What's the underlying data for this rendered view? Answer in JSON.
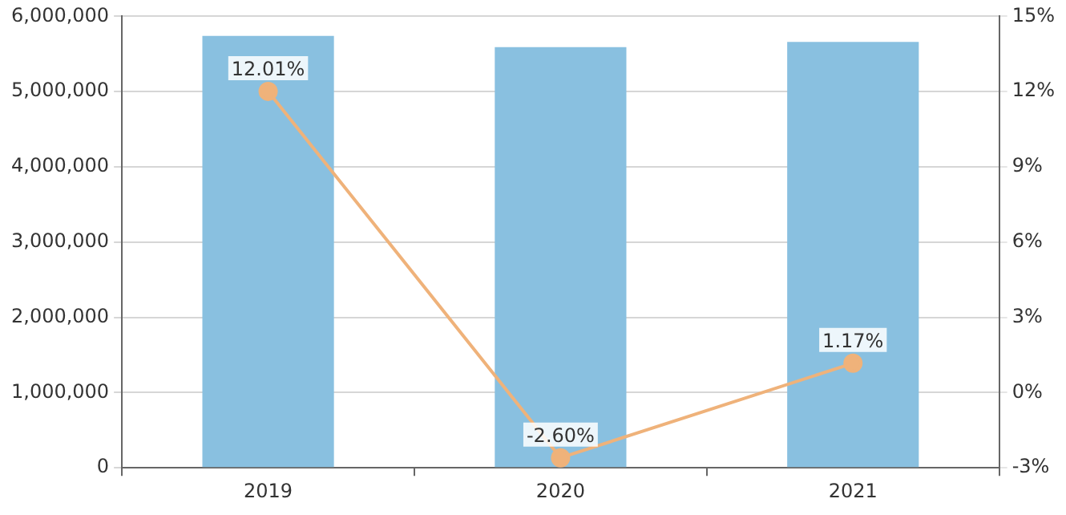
{
  "chart_data": {
    "type": "bar",
    "categories": [
      "2019",
      "2020",
      "2021"
    ],
    "series": [
      {
        "color": "#89c0e0",
        "values": [
          5740000,
          5590000,
          5660000
        ]
      },
      {
        "type": "line",
        "axis": "y2",
        "color": "#efb27a",
        "values": [
          12.01,
          -2.6,
          1.17
        ],
        "value_labels": [
          "12.01%",
          "-2.60%",
          "1.17%"
        ]
      }
    ],
    "ylim": [
      0,
      6000000
    ],
    "yticks": [
      {
        "value": 0,
        "label": "0"
      },
      {
        "value": 1000000,
        "label": "1,000,000"
      },
      {
        "value": 2000000,
        "label": "2,000,000"
      },
      {
        "value": 3000000,
        "label": "3,000,000"
      },
      {
        "value": 4000000,
        "label": "4,000,000"
      },
      {
        "value": 5000000,
        "label": "5,000,000"
      },
      {
        "value": 6000000,
        "label": "6,000,000"
      }
    ],
    "y2lim": [
      -3,
      15
    ],
    "y2ticks": [
      {
        "value": -3,
        "label": "-3%"
      },
      {
        "value": 0,
        "label": "0%"
      },
      {
        "value": 3,
        "label": "3%"
      },
      {
        "value": 6,
        "label": "6%"
      },
      {
        "value": 9,
        "label": "9%"
      },
      {
        "value": 12,
        "label": "12%"
      },
      {
        "value": 15,
        "label": "15%"
      }
    ],
    "grid": "y",
    "legend": false,
    "marker": "circle",
    "line_style": "solid"
  }
}
